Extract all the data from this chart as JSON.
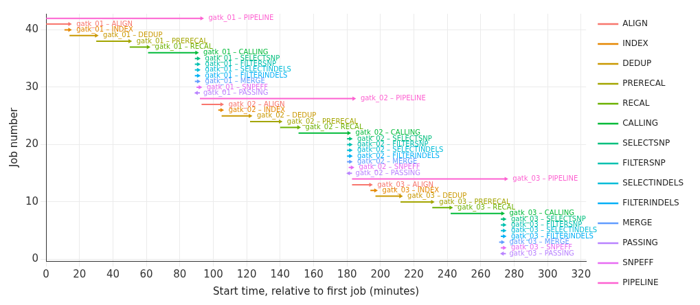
{
  "chart_data": {
    "type": "line",
    "xlabel": "Start time, relative to first job (minutes)",
    "ylabel": "Job number",
    "xlim": [
      0,
      323
    ],
    "ylim": [
      -0.3,
      42.8
    ],
    "xticks": [
      0,
      20,
      40,
      60,
      80,
      100,
      120,
      140,
      160,
      180,
      200,
      220,
      240,
      260,
      280,
      300,
      320
    ],
    "yticks": [
      0,
      10,
      20,
      30,
      40
    ],
    "grid": true,
    "legend": "right",
    "marker": "triangle",
    "series": [
      {
        "name": "ALIGN",
        "color": "#f8766d",
        "x": [
          0,
          14,
          null,
          93,
          105,
          null,
          183,
          194
        ],
        "values": [
          41,
          41,
          null,
          27,
          27,
          null,
          13,
          13
        ]
      },
      {
        "name": "INDEX",
        "color": "#e58700",
        "x": [
          11,
          14,
          null,
          103,
          105,
          null,
          194,
          197
        ],
        "values": [
          40,
          40,
          null,
          26,
          26,
          null,
          12,
          12
        ]
      },
      {
        "name": "DEDUP",
        "color": "#c99800",
        "x": [
          14,
          30,
          null,
          105,
          122,
          null,
          197,
          212
        ],
        "values": [
          39,
          39,
          null,
          25,
          25,
          null,
          11,
          11
        ]
      },
      {
        "name": "PRERECAL",
        "color": "#a3a500",
        "x": [
          30,
          50,
          null,
          122,
          140,
          null,
          212,
          231
        ],
        "values": [
          38,
          38,
          null,
          24,
          24,
          null,
          10,
          10
        ]
      },
      {
        "name": "RECAL",
        "color": "#6bb100",
        "x": [
          50,
          61,
          null,
          140,
          151,
          null,
          231,
          242
        ],
        "values": [
          37,
          37,
          null,
          23,
          23,
          null,
          9,
          9
        ]
      },
      {
        "name": "CALLING",
        "color": "#00ba38",
        "x": [
          61,
          90,
          null,
          151,
          181,
          null,
          242,
          273
        ],
        "values": [
          36,
          36,
          null,
          22,
          22,
          null,
          8,
          8
        ]
      },
      {
        "name": "SELECTSNP",
        "color": "#00bf7d",
        "x": [
          89,
          91,
          null,
          180,
          182,
          null,
          272,
          274
        ],
        "values": [
          35,
          35,
          null,
          21,
          21,
          null,
          7,
          7
        ]
      },
      {
        "name": "FILTERSNP",
        "color": "#00c0af",
        "x": [
          89,
          91,
          null,
          180,
          182,
          null,
          272,
          274
        ],
        "values": [
          34,
          34,
          null,
          20,
          20,
          null,
          6,
          6
        ]
      },
      {
        "name": "SELECTINDELS",
        "color": "#00bcd8",
        "x": [
          89,
          91,
          null,
          180,
          182,
          null,
          272,
          274
        ],
        "values": [
          33,
          33,
          null,
          19,
          19,
          null,
          5,
          5
        ]
      },
      {
        "name": "FILTERINDELS",
        "color": "#00b0f6",
        "x": [
          89,
          91,
          null,
          180,
          182,
          null,
          272,
          274
        ],
        "values": [
          32,
          32,
          null,
          18,
          18,
          null,
          4,
          4
        ]
      },
      {
        "name": "MERGE",
        "color": "#619cff",
        "x": [
          89,
          91,
          null,
          180,
          182,
          null,
          271,
          273
        ],
        "values": [
          31,
          31,
          null,
          17,
          17,
          null,
          3,
          3
        ]
      },
      {
        "name": "PASSING",
        "color": "#b983ff",
        "x": [
          92,
          90,
          null,
          183,
          181,
          null,
          275,
          273
        ],
        "values": [
          29,
          29,
          null,
          15,
          15,
          null,
          1,
          1
        ]
      },
      {
        "name": "SNPEFF",
        "color": "#e76bf3",
        "x": [
          90,
          92,
          null,
          181,
          183,
          null,
          272,
          274
        ],
        "values": [
          30,
          30,
          null,
          16,
          16,
          null,
          2,
          2
        ]
      },
      {
        "name": "PIPELINE",
        "color": "#fd61d1",
        "x": [
          0,
          93,
          null,
          92,
          184,
          null,
          183,
          275
        ],
        "values": [
          42,
          42,
          null,
          28,
          28,
          null,
          14,
          14
        ]
      }
    ],
    "annotations": [
      {
        "text": "gatk_01 – PIPELINE",
        "x": 93,
        "y": 42
      },
      {
        "text": "gatk_01 – ALIGN",
        "x": 14,
        "y": 41
      },
      {
        "text": "gatk_01 – INDEX",
        "x": 14,
        "y": 40
      },
      {
        "text": "gatk_01 – DEDUP",
        "x": 30,
        "y": 39
      },
      {
        "text": "gatk_01 – PRERECAL",
        "x": 50,
        "y": 38
      },
      {
        "text": "gatk_01 – RECAL",
        "x": 61,
        "y": 37
      },
      {
        "text": "gatk_01 – CALLING",
        "x": 90,
        "y": 36
      },
      {
        "text": "gatk_01 – SELECTSNP",
        "x": 91,
        "y": 35
      },
      {
        "text": "gatk_01 – FILTERSNP",
        "x": 91,
        "y": 34
      },
      {
        "text": "gatk_01 – SELECTINDELS",
        "x": 91,
        "y": 33
      },
      {
        "text": "gatk_01 – FILTERINDELS",
        "x": 91,
        "y": 32
      },
      {
        "text": "gatk_01 – MERGE",
        "x": 91,
        "y": 31
      },
      {
        "text": "gatk_01 – SNPEFF",
        "x": 92,
        "y": 30
      },
      {
        "text": "gatk_01 – PASSING",
        "x": 90,
        "y": 29
      },
      {
        "text": "gatk_02 – PIPELINE",
        "x": 184,
        "y": 28
      },
      {
        "text": "gatk_02 – ALIGN",
        "x": 105,
        "y": 27
      },
      {
        "text": "gatk_02 – INDEX",
        "x": 105,
        "y": 26
      },
      {
        "text": "gatk_02 – DEDUP",
        "x": 122,
        "y": 25
      },
      {
        "text": "gatk_02 – PRERECAL",
        "x": 140,
        "y": 24
      },
      {
        "text": "gatk_02 – RECAL",
        "x": 151,
        "y": 23
      },
      {
        "text": "gatk_02 – CALLING",
        "x": 181,
        "y": 22
      },
      {
        "text": "gatk_02 – SELECTSNP",
        "x": 182,
        "y": 21
      },
      {
        "text": "gatk_02 – FILTERSNP",
        "x": 182,
        "y": 20
      },
      {
        "text": "gatk_02 – SELECTINDELS",
        "x": 182,
        "y": 19
      },
      {
        "text": "gatk_02 – FILTERINDELS",
        "x": 182,
        "y": 18
      },
      {
        "text": "gatk_02 – MERGE",
        "x": 182,
        "y": 17
      },
      {
        "text": "gatk_02 – SNPEFF",
        "x": 183,
        "y": 16
      },
      {
        "text": "gatk_02 – PASSING",
        "x": 181,
        "y": 15
      },
      {
        "text": "gatk_03 – PIPELINE",
        "x": 275,
        "y": 14
      },
      {
        "text": "gatk_03 – ALIGN",
        "x": 194,
        "y": 13
      },
      {
        "text": "gatk_03 – INDEX",
        "x": 197,
        "y": 12
      },
      {
        "text": "gatk_03 – DEDUP",
        "x": 212,
        "y": 11
      },
      {
        "text": "gatk_03 – PRERECAL",
        "x": 231,
        "y": 10
      },
      {
        "text": "gatk_03 – RECAL",
        "x": 242,
        "y": 9
      },
      {
        "text": "gatk_03 – CALLING",
        "x": 273,
        "y": 8
      },
      {
        "text": "gatk_03 – SELECTSNP",
        "x": 274,
        "y": 7
      },
      {
        "text": "gatk_03 – FILTERSNP",
        "x": 274,
        "y": 6
      },
      {
        "text": "gatk_03 – SELECTINDELS",
        "x": 274,
        "y": 5
      },
      {
        "text": "gatk_03 – FILTERINDELS",
        "x": 274,
        "y": 4
      },
      {
        "text": "gatk_03 – MERGE",
        "x": 273,
        "y": 3
      },
      {
        "text": "gatk_03 – SNPEFF",
        "x": 274,
        "y": 2
      },
      {
        "text": "gatk_03 – PASSING",
        "x": 273,
        "y": 1
      }
    ]
  }
}
